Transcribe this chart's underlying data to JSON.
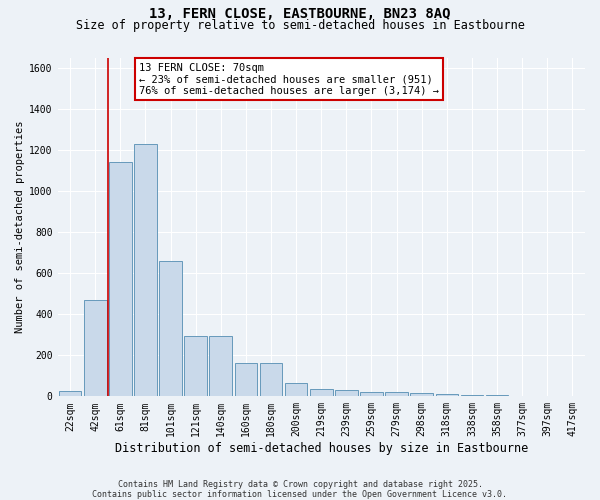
{
  "title": "13, FERN CLOSE, EASTBOURNE, BN23 8AQ",
  "subtitle": "Size of property relative to semi-detached houses in Eastbourne",
  "xlabel": "Distribution of semi-detached houses by size in Eastbourne",
  "ylabel": "Number of semi-detached properties",
  "footer": "Contains HM Land Registry data © Crown copyright and database right 2025.\nContains public sector information licensed under the Open Government Licence v3.0.",
  "bar_labels": [
    "22sqm",
    "42sqm",
    "61sqm",
    "81sqm",
    "101sqm",
    "121sqm",
    "140sqm",
    "160sqm",
    "180sqm",
    "200sqm",
    "219sqm",
    "239sqm",
    "259sqm",
    "279sqm",
    "298sqm",
    "318sqm",
    "338sqm",
    "358sqm",
    "377sqm",
    "397sqm",
    "417sqm"
  ],
  "bar_values": [
    25,
    470,
    1140,
    1230,
    660,
    295,
    295,
    160,
    160,
    65,
    38,
    30,
    20,
    20,
    14,
    10,
    7,
    5,
    3,
    2,
    1
  ],
  "bar_color": "#c9d9ea",
  "bar_edge_color": "#6699bb",
  "vline_x": 1.5,
  "annotation_title": "13 FERN CLOSE: 70sqm",
  "annotation_line1": "← 23% of semi-detached houses are smaller (951)",
  "annotation_line2": "76% of semi-detached houses are larger (3,174) →",
  "annotation_box_edgecolor": "#cc0000",
  "vline_color": "#cc0000",
  "ylim": [
    0,
    1650
  ],
  "yticks": [
    0,
    200,
    400,
    600,
    800,
    1000,
    1200,
    1400,
    1600
  ],
  "title_fontsize": 10,
  "subtitle_fontsize": 8.5,
  "xlabel_fontsize": 8.5,
  "ylabel_fontsize": 7.5,
  "tick_fontsize": 7,
  "footer_fontsize": 6,
  "annotation_fontsize": 7.5,
  "bg_color": "#edf2f7",
  "plot_bg_color": "#edf2f7",
  "grid_color": "#ffffff"
}
